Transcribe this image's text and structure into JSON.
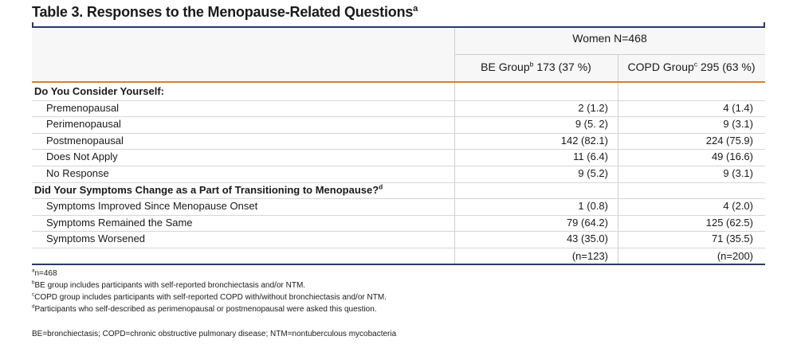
{
  "title": {
    "text": "Table 3. Responses to the Menopause-Related Questions",
    "sup": "a"
  },
  "table": {
    "group_header": "Women N=468",
    "columns": [
      {
        "name": "BE Group",
        "sup": "b",
        "count": "173 (37 %)"
      },
      {
        "name": "COPD Group",
        "sup": "c",
        "count": "295 (63 %)"
      }
    ],
    "sections": [
      {
        "heading": "Do You Consider Yourself:",
        "rows": [
          [
            "Premenopausal",
            "2 (1.2)",
            "4 (1.4)"
          ],
          [
            "Perimenopausal",
            "9 (5. 2)",
            "9 (3.1)"
          ],
          [
            "Postmenopausal",
            "142 (82.1)",
            "224 (75.9)"
          ],
          [
            "Does Not Apply",
            "11 (6.4)",
            "49 (16.6)"
          ],
          [
            "No Response",
            "9 (5.2)",
            "9 (3.1)"
          ]
        ]
      },
      {
        "heading": "Did Your Symptoms Change as a Part of Transitioning to Menopause?",
        "sup": "d",
        "rows": [
          [
            "Symptoms Improved Since Menopause Onset",
            "1 (0.8)",
            "4 (2.0)"
          ],
          [
            "Symptoms Remained the Same",
            "79 (64.2)",
            "125 (62.5)"
          ],
          [
            "Symptoms Worsened",
            "43 (35.0)",
            "71 (35.5)"
          ]
        ]
      }
    ],
    "totals": [
      "(n=123)",
      "(n=200)"
    ]
  },
  "footnotes": [
    {
      "mark": "a",
      "text": "n=468"
    },
    {
      "mark": "b",
      "text": "BE group includes participants with self-reported bronchiectasis and/or NTM."
    },
    {
      "mark": "c",
      "text": "COPD group includes participants with self-reported COPD with/without bronchiectasis and/or NTM."
    },
    {
      "mark": "d",
      "text": "Participants who self-described as perimenopausal or postmenopausal were asked this question."
    }
  ],
  "abbreviations": "BE=bronchiectasis; COPD=chronic obstructive pulmonary disease; NTM=nontuberculous mycobacteria"
}
